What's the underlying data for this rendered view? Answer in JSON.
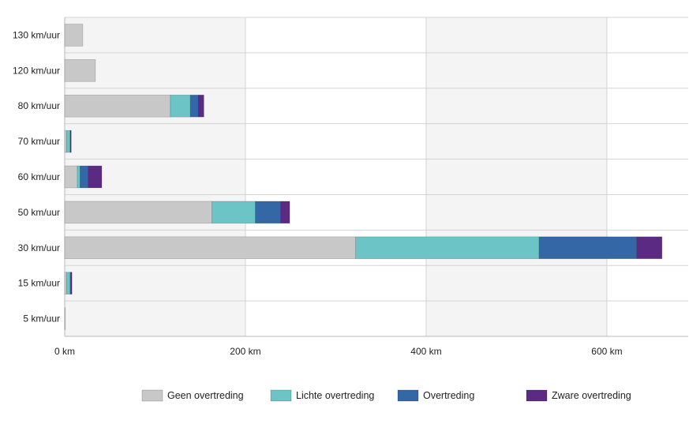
{
  "chart_data": {
    "type": "bar",
    "orientation": "horizontal",
    "stacked": true,
    "categories": [
      "130 km/uur",
      "120 km/uur",
      "80 km/uur",
      "70 km/uur",
      "60 km/uur",
      "50 km/uur",
      "30 km/uur",
      "15 km/uur",
      "5 km/uur"
    ],
    "series": [
      {
        "name": "Geen overtreding",
        "color": "#c8c8c8",
        "values": [
          20,
          34,
          117,
          2,
          14,
          163,
          322,
          2,
          0.5
        ]
      },
      {
        "name": "Lichte overtreding",
        "color": "#6cc4c6",
        "values": [
          0,
          0,
          22,
          4,
          3,
          48,
          203,
          4,
          0
        ]
      },
      {
        "name": "Overtreding",
        "color": "#3367a5",
        "values": [
          0,
          0,
          9,
          0.5,
          9,
          28,
          108,
          1,
          0
        ]
      },
      {
        "name": "Zware overtreding",
        "color": "#5b2b84",
        "values": [
          0,
          0,
          6,
          0.5,
          15,
          10,
          28,
          1,
          0
        ]
      }
    ],
    "xlim": [
      0,
      690
    ],
    "xticks": [
      0,
      200,
      400,
      600
    ],
    "xtick_labels": [
      "0 km",
      "200 km",
      "400 km",
      "600 km"
    ],
    "xlabel": "",
    "ylabel": "",
    "title": "",
    "grid": true,
    "legend_position": "bottom"
  }
}
